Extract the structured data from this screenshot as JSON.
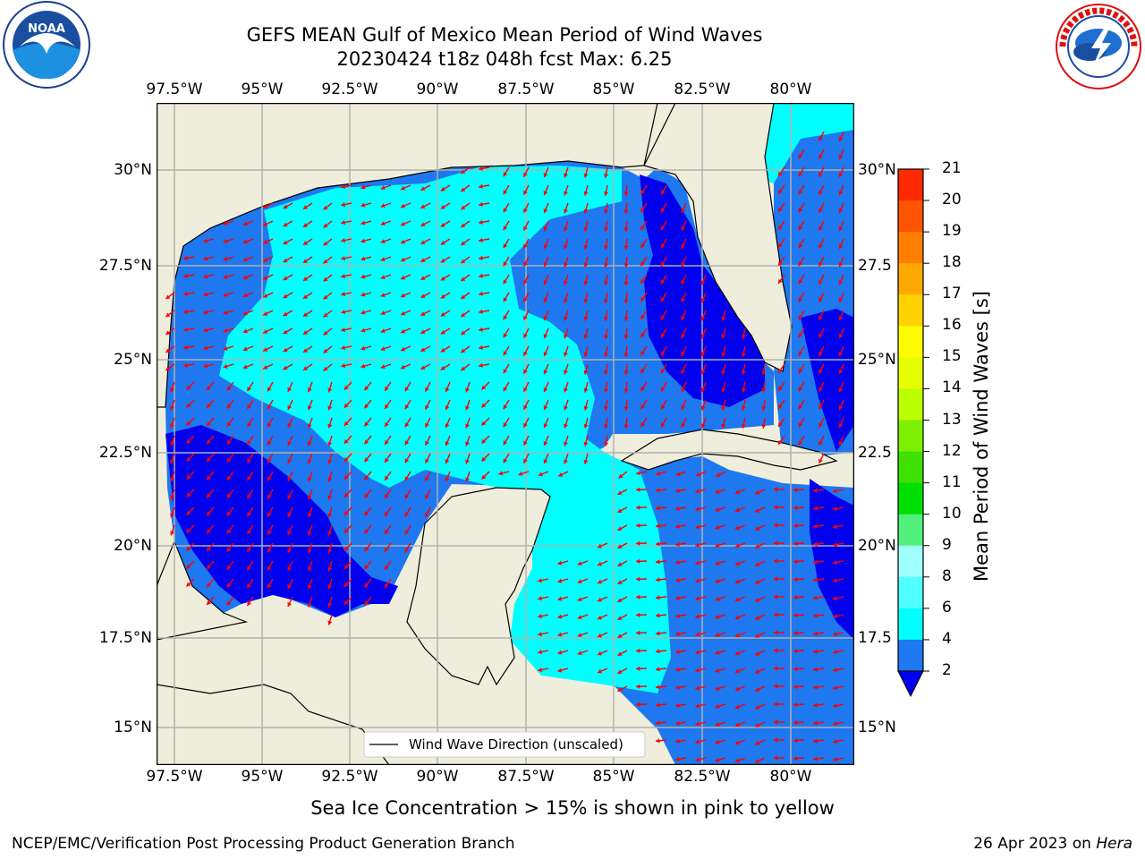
{
  "header": {
    "title_line1": "GEFS MEAN Gulf of Mexico Mean Period of Wind Waves",
    "title_line2": "20230424 t18z 048h fcst   Max: 6.25"
  },
  "logos": {
    "left": {
      "text": "NOAA",
      "ring_text": "NATIONAL OCEANIC AND ATMOSPHERIC ADMINISTRATION · U.S. DEPARTMENT OF COMMERCE"
    },
    "right": {
      "ring_text": "NATIONAL WEATHER SERVICE"
    }
  },
  "map": {
    "lon_labels": [
      "97.5°W",
      "95°W",
      "92.5°W",
      "90°W",
      "87.5°W",
      "85°W",
      "82.5°W",
      "80°W"
    ],
    "lat_labels_left": [
      "30°N",
      "27.5°N",
      "25°N",
      "22.5°N",
      "20°N",
      "17.5°N",
      "15°N"
    ],
    "lat_labels_right": [
      "30°N",
      "27.5",
      "25°N",
      "22.5",
      "20°N",
      "17.5",
      "15°N"
    ],
    "legend_label": "Wind Wave Direction (unscaled)",
    "colors": {
      "land": "#efeedc",
      "deep": "#0000ee",
      "mid": "#1e78f0",
      "shallow": "#00ffff",
      "arrow": "#ff0000"
    }
  },
  "colorbar": {
    "label": "Mean Period of Wind Waves [s]",
    "ticks": [
      "21",
      "20",
      "19",
      "18",
      "17",
      "16",
      "15",
      "14",
      "13",
      "12",
      "11",
      "10",
      "9",
      "8",
      "6",
      "4",
      "2"
    ],
    "colors": [
      "#ff0000",
      "#ff2a00",
      "#ff5400",
      "#ff7e00",
      "#ffa800",
      "#ffd200",
      "#fffc00",
      "#e6ff00",
      "#bcff00",
      "#7cf000",
      "#40e000",
      "#00e000",
      "#50f07a",
      "#a0ffff",
      "#50ffff",
      "#00ffff",
      "#1e78f0",
      "#0000ee"
    ]
  },
  "footer": {
    "note": "Sea Ice Concentration > 15% is shown in pink to yellow",
    "left": "NCEP/EMC/Verification Post Processing Product Generation Branch",
    "right_date": "26 Apr 2023 on ",
    "right_host": "Hera"
  }
}
